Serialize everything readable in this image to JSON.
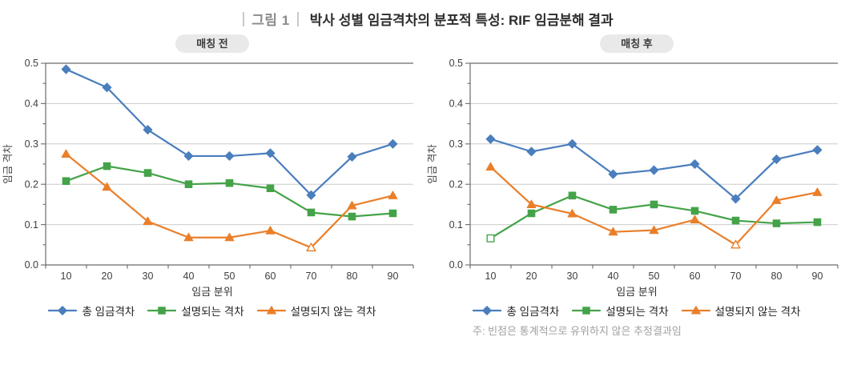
{
  "header": {
    "figure_label": "그림 1",
    "title": "박사 성별 임금격차의 분포적 특성: RIF 임금분해 결과"
  },
  "note": "주: 빈점은 통계적으로 유위하지 않은 추정결과임",
  "colors": {
    "total": "#4a7ebd",
    "explained": "#44a348",
    "unexplained": "#ea7f2a",
    "axis": "#6a6a6a",
    "gridline": "#cccccc",
    "tick_text": "#3d3d3d",
    "badge_bg": "#e9e9e9",
    "note_text": "#9f9f9f",
    "figure_label_text": "#8a8a8a",
    "title_text": "#2d2d2d"
  },
  "legend": [
    {
      "key": "total",
      "label": "총 임금격차",
      "color": "#4a7ebd",
      "marker": "diamond"
    },
    {
      "key": "explained",
      "label": "설명되는 격차",
      "color": "#44a348",
      "marker": "square"
    },
    {
      "key": "unexplained",
      "label": "설명되지 않는 격차",
      "color": "#ea7f2a",
      "marker": "triangle"
    }
  ],
  "axis": {
    "ylabel": "임금 격차",
    "xlabel": "임금 분위",
    "ylim": [
      0,
      0.5
    ],
    "yticks": [
      "0.0",
      "0.1",
      "0.2",
      "0.3",
      "0.4",
      "0.5"
    ],
    "ytick_step": 0.1,
    "yminor_step": 0.05,
    "grid": "horizontal"
  },
  "chart_data": [
    {
      "type": "line",
      "title": "매칭 전",
      "xlabel": "임금 분위",
      "ylabel": "임금 격차",
      "x": [
        10,
        20,
        30,
        40,
        50,
        60,
        70,
        80,
        90
      ],
      "ylim": [
        0,
        0.5
      ],
      "series": [
        {
          "key": "total",
          "name": "총 임금격차",
          "marker": "diamond",
          "color": "#4a7ebd",
          "values": [
            0.485,
            0.44,
            0.335,
            0.27,
            0.27,
            0.277,
            0.173,
            0.268,
            0.3
          ],
          "hollow_x": []
        },
        {
          "key": "explained",
          "name": "설명되는 격차",
          "marker": "square",
          "color": "#44a348",
          "values": [
            0.208,
            0.245,
            0.228,
            0.2,
            0.203,
            0.19,
            0.13,
            0.12,
            0.128
          ],
          "hollow_x": []
        },
        {
          "key": "unexplained",
          "name": "설명되지 않는 격차",
          "marker": "triangle",
          "color": "#ea7f2a",
          "values": [
            0.275,
            0.193,
            0.108,
            0.068,
            0.068,
            0.085,
            0.043,
            0.147,
            0.172
          ],
          "hollow_x": [
            70
          ]
        }
      ]
    },
    {
      "type": "line",
      "title": "매칭 후",
      "xlabel": "임금 분위",
      "ylabel": "임금 격차",
      "x": [
        10,
        20,
        30,
        40,
        50,
        60,
        70,
        80,
        90
      ],
      "ylim": [
        0,
        0.5
      ],
      "series": [
        {
          "key": "total",
          "name": "총 임금격차",
          "marker": "diamond",
          "color": "#4a7ebd",
          "values": [
            0.312,
            0.281,
            0.3,
            0.225,
            0.235,
            0.25,
            0.164,
            0.262,
            0.285
          ],
          "hollow_x": []
        },
        {
          "key": "explained",
          "name": "설명되는 격차",
          "marker": "square",
          "color": "#44a348",
          "values": [
            0.066,
            0.128,
            0.172,
            0.137,
            0.15,
            0.134,
            0.11,
            0.103,
            0.106
          ],
          "hollow_x": [
            10
          ]
        },
        {
          "key": "unexplained",
          "name": "설명되지 않는 격차",
          "marker": "triangle",
          "color": "#ea7f2a",
          "values": [
            0.243,
            0.15,
            0.127,
            0.082,
            0.086,
            0.112,
            0.05,
            0.16,
            0.18
          ],
          "hollow_x": [
            70
          ]
        }
      ]
    }
  ]
}
